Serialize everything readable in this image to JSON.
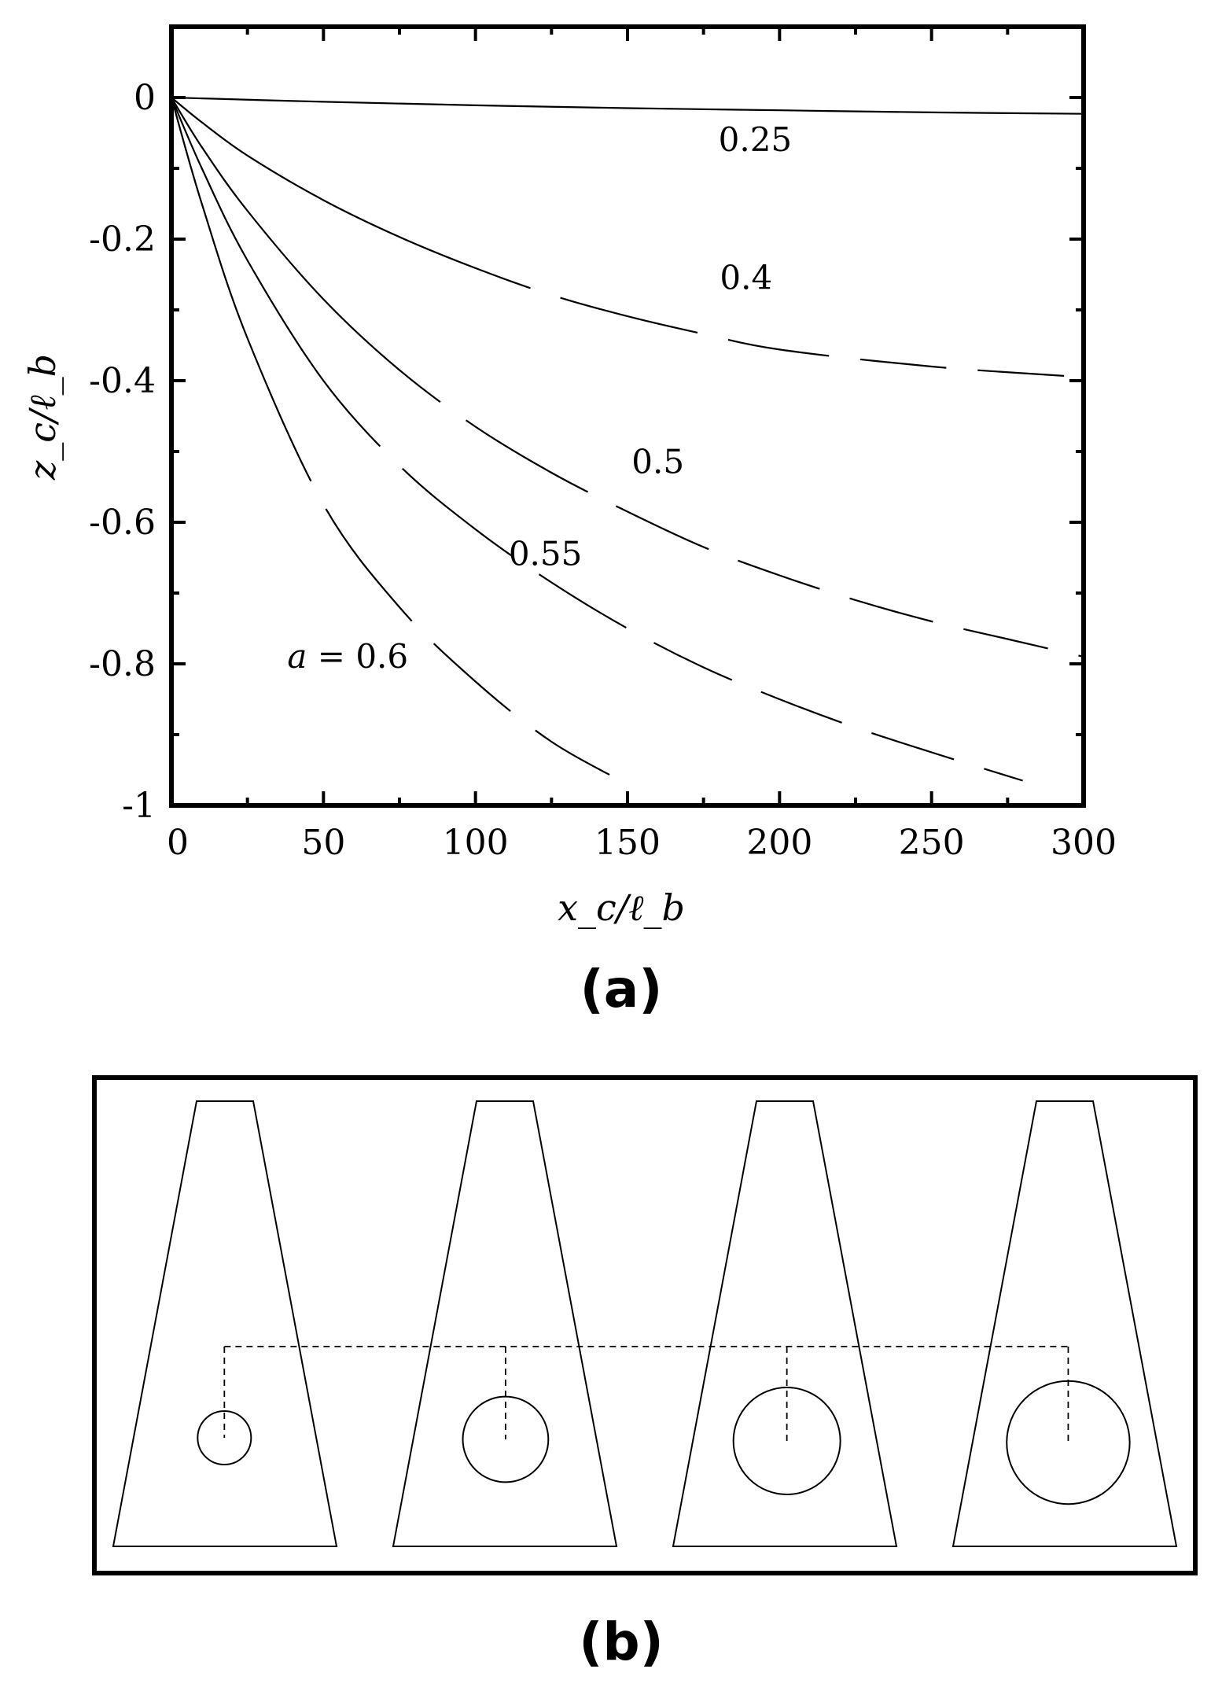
{
  "panels": {
    "a": "(a)",
    "b": "(b)"
  },
  "chart_data": {
    "type": "line",
    "xlabel": "x_c/ℓ_b",
    "ylabel": "z_c/ℓ_b",
    "xlim": [
      0,
      300
    ],
    "ylim": [
      -1,
      0.1
    ],
    "xticks": [
      "0",
      "50",
      "100",
      "150",
      "200",
      "250",
      "300"
    ],
    "yticks": [
      "0",
      "-0.2",
      "-0.4",
      "-0.6",
      "-0.8",
      "-1"
    ],
    "grid": false,
    "series": [
      {
        "name": "0.25",
        "x": [
          0,
          50,
          100,
          150,
          200,
          250,
          300
        ],
        "y": [
          0,
          -0.006,
          -0.011,
          -0.015,
          -0.018,
          -0.021,
          -0.023
        ]
      },
      {
        "name": "0.4",
        "x": [
          0,
          10,
          25,
          50,
          75,
          100,
          125,
          150,
          175,
          200,
          250,
          300
        ],
        "y": [
          0,
          -0.035,
          -0.082,
          -0.145,
          -0.197,
          -0.241,
          -0.279,
          -0.309,
          -0.334,
          -0.356,
          -0.38,
          -0.395
        ]
      },
      {
        "name": "0.5",
        "x": [
          0,
          10,
          25,
          50,
          75,
          100,
          125,
          150,
          175,
          200,
          225,
          250,
          275,
          300
        ],
        "y": [
          0,
          -0.07,
          -0.16,
          -0.285,
          -0.385,
          -0.465,
          -0.53,
          -0.585,
          -0.635,
          -0.675,
          -0.71,
          -0.74,
          -0.765,
          -0.79
        ]
      },
      {
        "name": "0.55",
        "x": [
          0,
          10,
          25,
          50,
          75,
          100,
          125,
          150,
          175,
          200,
          225,
          250,
          280
        ],
        "y": [
          0,
          -0.1,
          -0.23,
          -0.4,
          -0.52,
          -0.61,
          -0.685,
          -0.75,
          -0.805,
          -0.85,
          -0.89,
          -0.925,
          -0.965
        ]
      },
      {
        "name": "a = 0.6",
        "x": [
          0,
          10,
          25,
          50,
          75,
          100,
          125,
          150
        ],
        "y": [
          0,
          -0.15,
          -0.34,
          -0.575,
          -0.72,
          -0.825,
          -0.91,
          -0.97
        ]
      }
    ],
    "curve_labels": [
      {
        "text": "0.25",
        "x": 192,
        "y": -0.06
      },
      {
        "text": "0.4",
        "x": 189,
        "y": -0.255
      },
      {
        "text": "0.5",
        "x": 160,
        "y": -0.515
      },
      {
        "text": "0.55",
        "x": 123,
        "y": -0.645
      },
      {
        "text": "a = 0.6",
        "x": 58,
        "y": -0.79
      }
    ]
  },
  "diagram": {
    "sphere_sizes": [
      1,
      1.6,
      2.0,
      2.3
    ]
  }
}
